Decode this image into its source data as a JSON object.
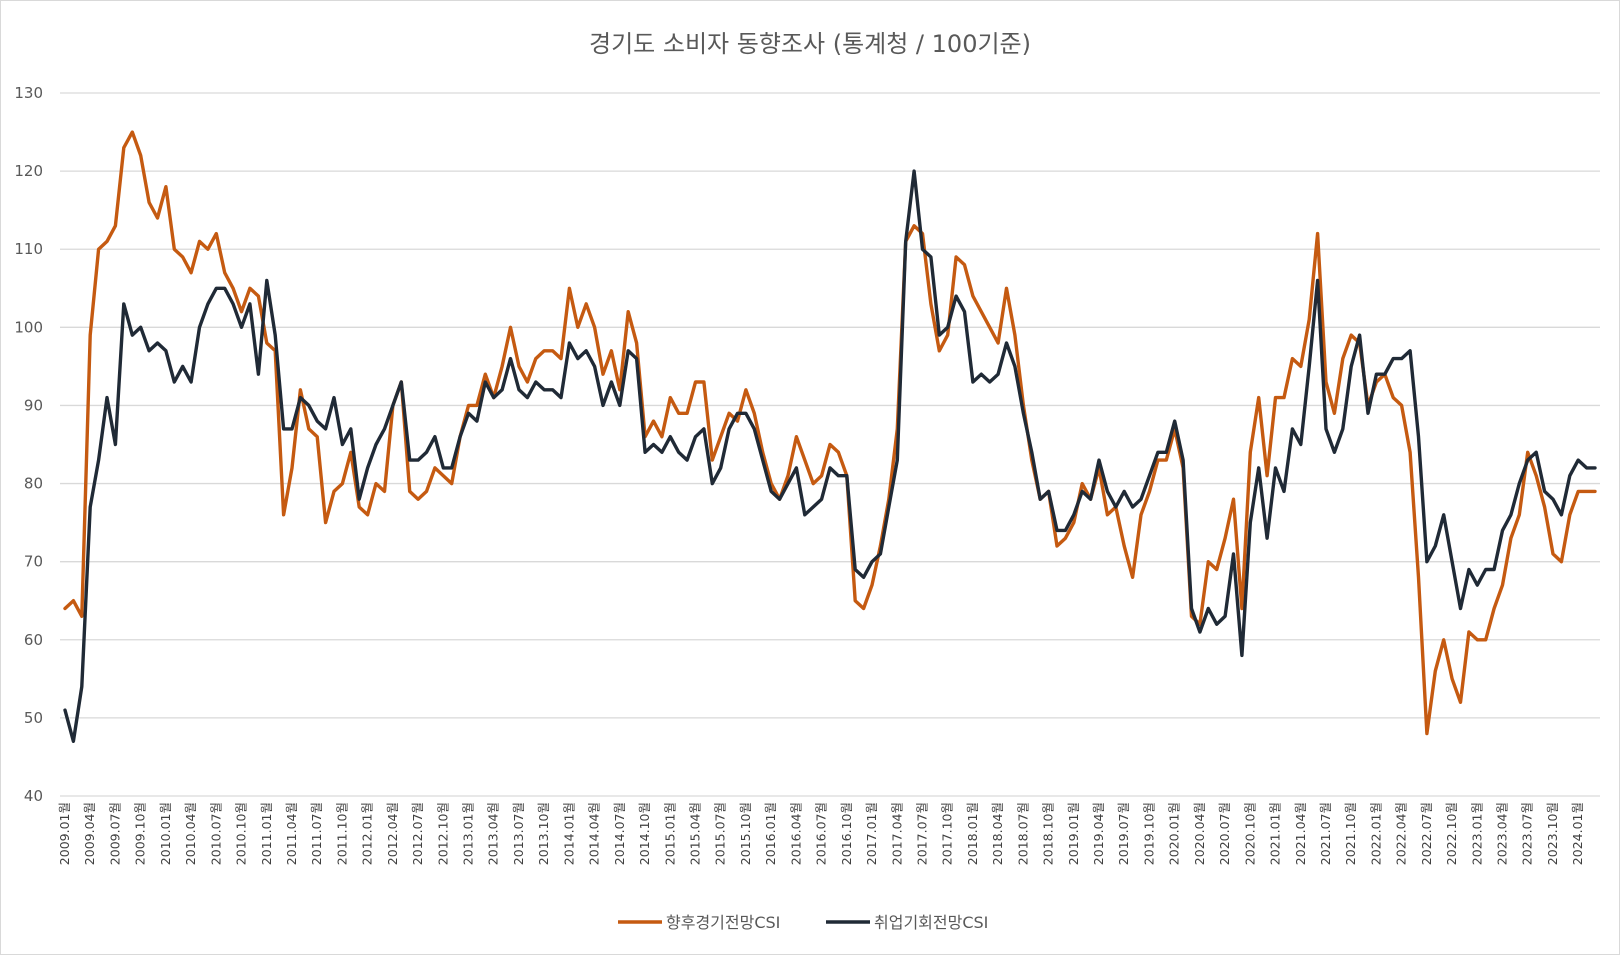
{
  "chart_data": {
    "type": "line",
    "title": "경기도 소비자 동향조사 (통계청 / 100기준)",
    "ylim": [
      40,
      130
    ],
    "yticks": [
      40,
      50,
      60,
      70,
      80,
      90,
      100,
      110,
      120,
      130
    ],
    "grid": "horizontal",
    "legend": "bottom",
    "x_tick_suffix": "월",
    "x": [
      "2009.01",
      "2009.02",
      "2009.03",
      "2009.04",
      "2009.05",
      "2009.06",
      "2009.07",
      "2009.08",
      "2009.09",
      "2009.10",
      "2009.11",
      "2009.12",
      "2010.01",
      "2010.02",
      "2010.03",
      "2010.04",
      "2010.05",
      "2010.06",
      "2010.07",
      "2010.08",
      "2010.09",
      "2010.10",
      "2010.11",
      "2010.12",
      "2011.01",
      "2011.02",
      "2011.03",
      "2011.04",
      "2011.05",
      "2011.06",
      "2011.07",
      "2011.08",
      "2011.09",
      "2011.10",
      "2011.11",
      "2011.12",
      "2012.01",
      "2012.02",
      "2012.03",
      "2012.04",
      "2012.05",
      "2012.06",
      "2012.07",
      "2012.08",
      "2012.09",
      "2012.10",
      "2012.11",
      "2012.12",
      "2013.01",
      "2013.02",
      "2013.03",
      "2013.04",
      "2013.05",
      "2013.06",
      "2013.07",
      "2013.08",
      "2013.09",
      "2013.10",
      "2013.11",
      "2013.12",
      "2014.01",
      "2014.02",
      "2014.03",
      "2014.04",
      "2014.05",
      "2014.06",
      "2014.07",
      "2014.08",
      "2014.09",
      "2014.10",
      "2014.11",
      "2014.12",
      "2015.01",
      "2015.02",
      "2015.03",
      "2015.04",
      "2015.05",
      "2015.06",
      "2015.07",
      "2015.08",
      "2015.09",
      "2015.10",
      "2015.11",
      "2015.12",
      "2016.01",
      "2016.02",
      "2016.03",
      "2016.04",
      "2016.05",
      "2016.06",
      "2016.07",
      "2016.08",
      "2016.09",
      "2016.10",
      "2016.11",
      "2016.12",
      "2017.01",
      "2017.02",
      "2017.03",
      "2017.04",
      "2017.05",
      "2017.06",
      "2017.07",
      "2017.08",
      "2017.09",
      "2017.10",
      "2017.11",
      "2017.12",
      "2018.01",
      "2018.02",
      "2018.03",
      "2018.04",
      "2018.05",
      "2018.06",
      "2018.07",
      "2018.08",
      "2018.09",
      "2018.10",
      "2018.11",
      "2018.12",
      "2019.01",
      "2019.02",
      "2019.03",
      "2019.04",
      "2019.05",
      "2019.06",
      "2019.07",
      "2019.08",
      "2019.09",
      "2019.10",
      "2019.11",
      "2019.12",
      "2020.01",
      "2020.02",
      "2020.03",
      "2020.04",
      "2020.05",
      "2020.06",
      "2020.07",
      "2020.08",
      "2020.09",
      "2020.10",
      "2020.11",
      "2020.12",
      "2021.01",
      "2021.02",
      "2021.03",
      "2021.04",
      "2021.05",
      "2021.06",
      "2021.07",
      "2021.08",
      "2021.09",
      "2021.10",
      "2021.11",
      "2021.12",
      "2022.01",
      "2022.02",
      "2022.03",
      "2022.04",
      "2022.05",
      "2022.06",
      "2022.07",
      "2022.08",
      "2022.09",
      "2022.10",
      "2022.11",
      "2022.12",
      "2023.01",
      "2023.02",
      "2023.03",
      "2023.04",
      "2023.05",
      "2023.06",
      "2023.07",
      "2023.08",
      "2023.09",
      "2023.10",
      "2023.11",
      "2023.12",
      "2024.01",
      "2024.02",
      "2024.03"
    ],
    "x_tick_labels": [
      "2009.01",
      "2009.04",
      "2009.07",
      "2009.10",
      "2010.01",
      "2010.04",
      "2010.07",
      "2010.10",
      "2011.01",
      "2011.04",
      "2011.07",
      "2011.10",
      "2012.01",
      "2012.04",
      "2012.07",
      "2012.10",
      "2013.01",
      "2013.04",
      "2013.07",
      "2013.10",
      "2014.01",
      "2014.04",
      "2014.07",
      "2014.10",
      "2015.01",
      "2015.04",
      "2015.07",
      "2015.10",
      "2016.01",
      "2016.04",
      "2016.07",
      "2016.10",
      "2017.01",
      "2017.04",
      "2017.07",
      "2017.10",
      "2018.01",
      "2018.04",
      "2018.07",
      "2018.10",
      "2019.01",
      "2019.04",
      "2019.07",
      "2019.10",
      "2020.01",
      "2020.04",
      "2020.07",
      "2020.10",
      "2021.01",
      "2021.04",
      "2021.07",
      "2021.10",
      "2022.01",
      "2022.04",
      "2022.07",
      "2022.10",
      "2023.01",
      "2023.04",
      "2023.07",
      "2023.10",
      "2024.01"
    ],
    "series": [
      {
        "name": "향후경기전망CSI",
        "color": "#C55A11",
        "values": [
          64,
          65,
          63,
          99,
          110,
          111,
          113,
          123,
          125,
          122,
          116,
          114,
          118,
          110,
          109,
          107,
          111,
          110,
          112,
          107,
          105,
          102,
          105,
          104,
          98,
          97,
          76,
          82,
          92,
          87,
          86,
          75,
          79,
          80,
          84,
          77,
          76,
          80,
          79,
          90,
          93,
          79,
          78,
          79,
          82,
          81,
          80,
          86,
          90,
          90,
          94,
          91,
          95,
          100,
          95,
          93,
          96,
          97,
          97,
          96,
          105,
          100,
          103,
          100,
          94,
          97,
          92,
          102,
          98,
          86,
          88,
          86,
          91,
          89,
          89,
          93,
          93,
          83,
          86,
          89,
          88,
          92,
          89,
          84,
          80,
          78,
          81,
          86,
          83,
          80,
          81,
          85,
          84,
          81,
          65,
          64,
          67,
          72,
          78,
          87,
          111,
          113,
          112,
          103,
          97,
          99,
          109,
          108,
          104,
          102,
          100,
          98,
          105,
          99,
          90,
          83,
          78,
          79,
          72,
          73,
          75,
          80,
          78,
          82,
          76,
          77,
          72,
          68,
          76,
          79,
          83,
          83,
          87,
          82,
          63,
          62,
          70,
          69,
          73,
          78,
          64,
          84,
          91,
          81,
          91,
          91,
          96,
          95,
          101,
          112,
          93,
          89,
          96,
          99,
          98,
          90,
          93,
          94,
          91,
          90,
          84,
          68,
          48,
          56,
          60,
          55,
          52,
          61,
          60,
          60,
          64,
          67,
          73,
          76,
          84,
          81,
          77,
          71,
          70,
          76,
          79,
          79,
          79
        ],
        "note": "approx digitized"
      },
      {
        "name": "취업기회전망CSI",
        "color": "#202A36",
        "values": [
          51,
          47,
          54,
          77,
          83,
          91,
          85,
          103,
          99,
          100,
          97,
          98,
          97,
          93,
          95,
          93,
          100,
          103,
          105,
          105,
          103,
          100,
          103,
          94,
          106,
          99,
          87,
          87,
          91,
          90,
          88,
          87,
          91,
          85,
          87,
          78,
          82,
          85,
          87,
          90,
          93,
          83,
          83,
          84,
          86,
          82,
          82,
          86,
          89,
          88,
          93,
          91,
          92,
          96,
          92,
          91,
          93,
          92,
          92,
          91,
          98,
          96,
          97,
          95,
          90,
          93,
          90,
          97,
          96,
          84,
          85,
          84,
          86,
          84,
          83,
          86,
          87,
          80,
          82,
          87,
          89,
          89,
          87,
          83,
          79,
          78,
          80,
          82,
          76,
          77,
          78,
          82,
          81,
          81,
          69,
          68,
          70,
          71,
          77,
          83,
          111,
          120,
          110,
          109,
          99,
          100,
          104,
          102,
          93,
          94,
          93,
          94,
          98,
          95,
          89,
          84,
          78,
          79,
          74,
          74,
          76,
          79,
          78,
          83,
          79,
          77,
          79,
          77,
          78,
          81,
          84,
          84,
          88,
          83,
          64,
          61,
          64,
          62,
          63,
          71,
          58,
          75,
          82,
          73,
          82,
          79,
          87,
          85,
          95,
          106,
          87,
          84,
          87,
          95,
          99,
          89,
          94,
          94,
          96,
          96,
          97,
          86,
          70,
          72,
          76,
          70,
          64,
          69,
          67,
          69,
          69,
          74,
          76,
          80,
          83,
          84,
          79,
          78,
          76,
          81,
          83,
          82,
          82
        ]
      }
    ]
  }
}
